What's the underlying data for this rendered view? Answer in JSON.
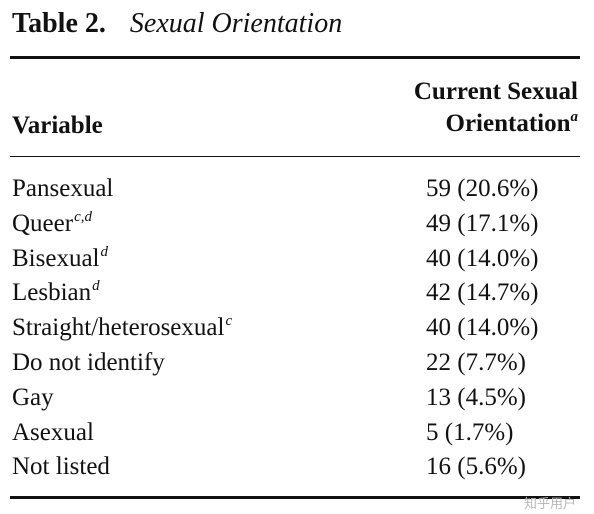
{
  "table": {
    "label": "Table 2.",
    "title": "Sexual Orientation",
    "header": {
      "variable": "Variable",
      "column_line1": "Current Sexual",
      "column_line2": "Orientation",
      "column_note": "a"
    },
    "rows": [
      {
        "name": "Pansexual",
        "note": "",
        "value": "59 (20.6%)"
      },
      {
        "name": "Queer",
        "note": "c,d",
        "value": "49 (17.1%)"
      },
      {
        "name": "Bisexual",
        "note": "d",
        "value": "40 (14.0%)"
      },
      {
        "name": "Lesbian",
        "note": "d",
        "value": "42 (14.7%)"
      },
      {
        "name": "Straight/heterosexual",
        "note": "c",
        "value": "40 (14.0%)"
      },
      {
        "name": "Do not identify",
        "note": "",
        "value": "22 (7.7%)"
      },
      {
        "name": "Gay",
        "note": "",
        "value": "13 (4.5%)"
      },
      {
        "name": "Asexual",
        "note": "",
        "value": "5 (1.7%)"
      },
      {
        "name": "Not listed",
        "note": "",
        "value": "16 (5.6%)"
      }
    ]
  },
  "watermark": "知乎用户"
}
